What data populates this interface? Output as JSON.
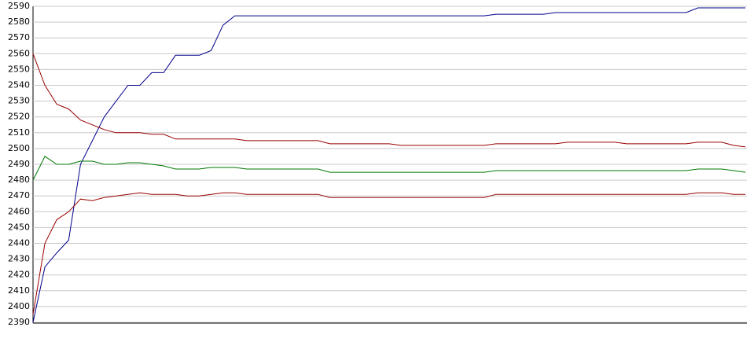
{
  "chart_data": {
    "type": "line",
    "categories": [
      null,
      null,
      null,
      null,
      null,
      null,
      null,
      null,
      null,
      null,
      null,
      null,
      null,
      null,
      null,
      null,
      null,
      null,
      null,
      null,
      null,
      null,
      null,
      null,
      null,
      null,
      null,
      null,
      null,
      null,
      null,
      null,
      null,
      null,
      null,
      null,
      null,
      null,
      null,
      null,
      null,
      null,
      null,
      null,
      null,
      null,
      null,
      null,
      null,
      null,
      null,
      null,
      null,
      null,
      null,
      null,
      null,
      null,
      null,
      null,
      null
    ],
    "series": [
      {
        "color": "#00008b",
        "values": [
          2390,
          2425,
          2434,
          2442,
          2490,
          2505,
          2520,
          2530,
          2540,
          2540,
          2548,
          2548,
          2559,
          2559,
          2559,
          2562,
          2578,
          2584,
          2584,
          2584,
          2584,
          2584,
          2584,
          2584,
          2584,
          2584,
          2584,
          2584,
          2584,
          2584,
          2584,
          2584,
          2584,
          2584,
          2584,
          2584,
          2584,
          2584,
          2584,
          2585,
          2585,
          2585,
          2585,
          2585,
          2586,
          2586,
          2586,
          2586,
          2586,
          2586,
          2586,
          2586,
          2586,
          2586,
          2586,
          2586,
          2589,
          2589,
          2589,
          2589,
          2589
        ]
      },
      {
        "color": "#990000",
        "values": [
          2560,
          2540,
          2528,
          2525,
          2518,
          2515,
          2512,
          2510,
          2510,
          2510,
          2509,
          2509,
          2506,
          2506,
          2506,
          2506,
          2506,
          2506,
          2505,
          2505,
          2505,
          2505,
          2505,
          2505,
          2505,
          2503,
          2503,
          2503,
          2503,
          2503,
          2503,
          2502,
          2502,
          2502,
          2502,
          2502,
          2502,
          2502,
          2502,
          2503,
          2503,
          2503,
          2503,
          2503,
          2503,
          2504,
          2504,
          2504,
          2504,
          2504,
          2503,
          2503,
          2503,
          2503,
          2503,
          2503,
          2504,
          2504,
          2504,
          2502,
          2501
        ]
      },
      {
        "color": "#007700",
        "values": [
          2480,
          2495,
          2490,
          2490,
          2492,
          2492,
          2490,
          2490,
          2491,
          2491,
          2490,
          2489,
          2487,
          2487,
          2487,
          2488,
          2488,
          2488,
          2487,
          2487,
          2487,
          2487,
          2487,
          2487,
          2487,
          2485,
          2485,
          2485,
          2485,
          2485,
          2485,
          2485,
          2485,
          2485,
          2485,
          2485,
          2485,
          2485,
          2485,
          2486,
          2486,
          2486,
          2486,
          2486,
          2486,
          2486,
          2486,
          2486,
          2486,
          2486,
          2486,
          2486,
          2486,
          2486,
          2486,
          2486,
          2487,
          2487,
          2487,
          2486,
          2485
        ]
      },
      {
        "color": "#990000",
        "values": [
          2395,
          2440,
          2455,
          2460,
          2468,
          2467,
          2469,
          2470,
          2471,
          2472,
          2471,
          2471,
          2471,
          2470,
          2470,
          2471,
          2472,
          2472,
          2471,
          2471,
          2471,
          2471,
          2471,
          2471,
          2471,
          2469,
          2469,
          2469,
          2469,
          2469,
          2469,
          2469,
          2469,
          2469,
          2469,
          2469,
          2469,
          2469,
          2469,
          2471,
          2471,
          2471,
          2471,
          2471,
          2471,
          2471,
          2471,
          2471,
          2471,
          2471,
          2471,
          2471,
          2471,
          2471,
          2471,
          2471,
          2472,
          2472,
          2472,
          2471,
          2471
        ]
      }
    ],
    "ylim": [
      2390,
      2590
    ],
    "yticks": [
      2390,
      2400,
      2410,
      2420,
      2430,
      2440,
      2450,
      2460,
      2470,
      2480,
      2490,
      2500,
      2510,
      2520,
      2530,
      2540,
      2550,
      2560,
      2570,
      2580,
      2590
    ],
    "grid": true
  }
}
